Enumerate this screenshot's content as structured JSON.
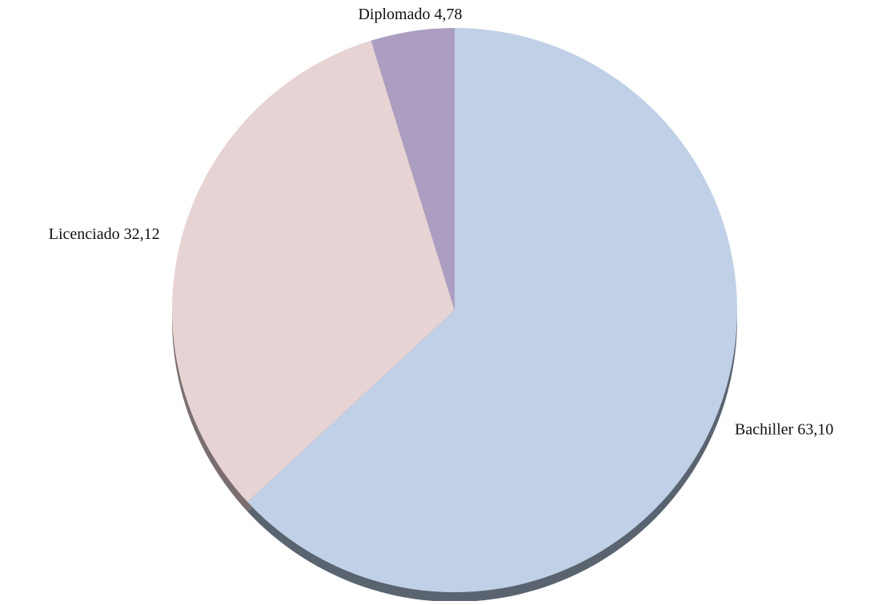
{
  "chart_data": {
    "type": "pie",
    "title": "",
    "start_angle_deg": 0,
    "direction": "clockwise",
    "style": "3d-extruded",
    "slices": [
      {
        "label": "Bachiller",
        "value": 63.1,
        "value_text": "63,10",
        "color": "#C0D0E6",
        "side_color": "#5A6470"
      },
      {
        "label": "Licenciado",
        "value": 32.12,
        "value_text": "32,12",
        "color": "#E8D3D4",
        "side_color": "#7A6E70"
      },
      {
        "label": "Diplomado",
        "value": 4.78,
        "value_text": "4,78",
        "color": "#AB9EC1",
        "side_color": "#6A6078"
      }
    ]
  }
}
